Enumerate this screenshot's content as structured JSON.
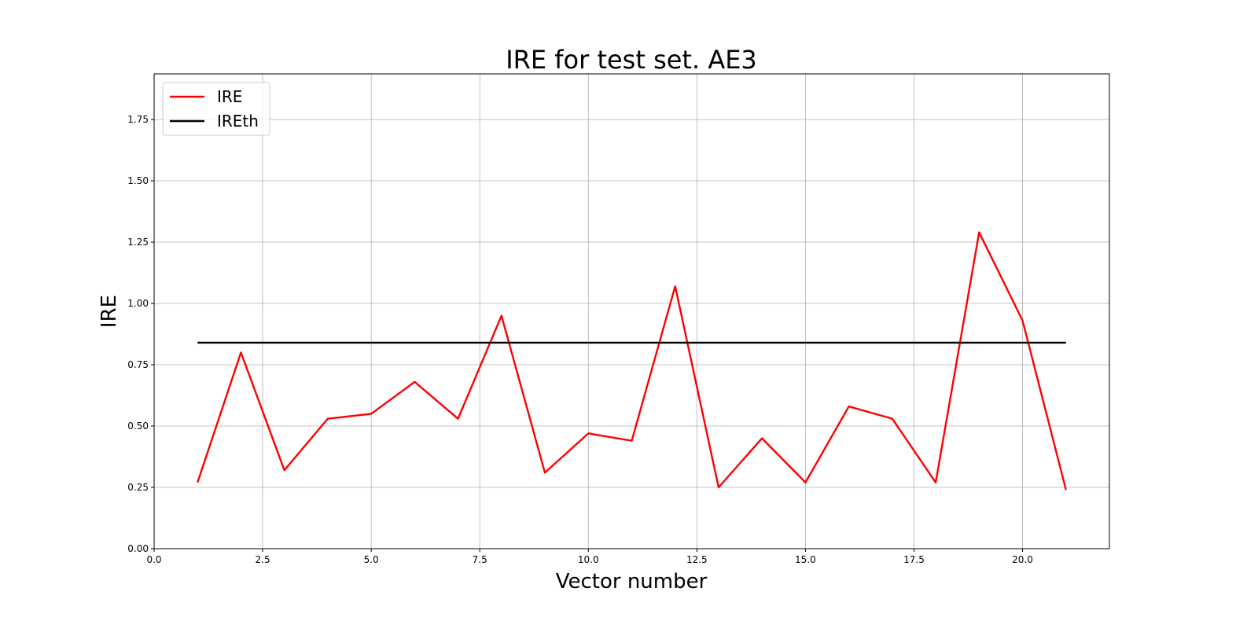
{
  "chart_data": {
    "type": "line",
    "title": "IRE for test set. AE3",
    "xlabel": "Vector number",
    "ylabel": "IRE",
    "xlim": [
      0,
      22
    ],
    "ylim": [
      0,
      1.936
    ],
    "xticks": [
      0,
      2.5,
      5,
      7.5,
      10,
      12.5,
      15,
      17.5,
      20
    ],
    "xtick_labels": [
      "0.0",
      "2.5",
      "5.0",
      "7.5",
      "10.0",
      "12.5",
      "15.0",
      "17.5",
      "20.0"
    ],
    "yticks": [
      0,
      0.25,
      0.5,
      0.75,
      1.0,
      1.25,
      1.5,
      1.75
    ],
    "ytick_labels": [
      "0.00",
      "0.25",
      "0.50",
      "0.75",
      "1.00",
      "1.25",
      "1.50",
      "1.75"
    ],
    "grid": true,
    "legend_placement": "top-left",
    "x": [
      1,
      2,
      3,
      4,
      5,
      6,
      7,
      8,
      9,
      10,
      11,
      12,
      13,
      14,
      15,
      16,
      17,
      18,
      19,
      20,
      21
    ],
    "series": [
      {
        "name": "IRE",
        "color": "#ff0000",
        "values": [
          0.27,
          0.8,
          0.32,
          0.53,
          0.55,
          0.68,
          0.53,
          0.95,
          0.31,
          0.47,
          0.44,
          1.07,
          0.25,
          0.45,
          0.27,
          0.58,
          0.53,
          0.27,
          1.29,
          0.93,
          0.24
        ]
      },
      {
        "name": "IREth",
        "color": "#000000",
        "values": [
          0.84,
          0.84,
          0.84,
          0.84,
          0.84,
          0.84,
          0.84,
          0.84,
          0.84,
          0.84,
          0.84,
          0.84,
          0.84,
          0.84,
          0.84,
          0.84,
          0.84,
          0.84,
          0.84,
          0.84,
          0.84
        ]
      }
    ]
  }
}
